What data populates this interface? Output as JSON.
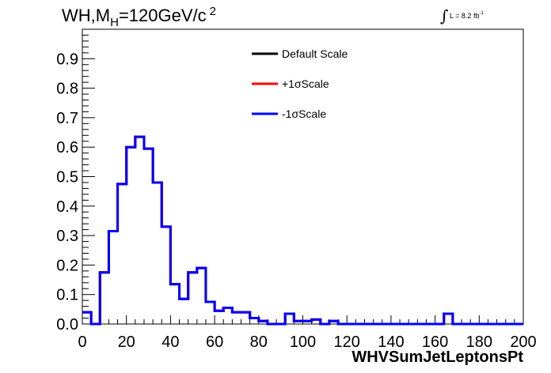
{
  "chart_data": {
    "type": "line",
    "title_parts": {
      "main": "WH,M",
      "sub": "H",
      "rest": "=120GeV/c",
      "sup": "2"
    },
    "lumi_label": {
      "integral": "∫",
      "text": "L = 8.2 fb",
      "sup": "-1"
    },
    "xlabel": "WHVSumJetLeptonsPt",
    "ylabel": "",
    "xlim": [
      0,
      200
    ],
    "ylim": [
      0,
      1.0
    ],
    "x_ticks": [
      "0",
      "20",
      "40",
      "60",
      "80",
      "100",
      "120",
      "140",
      "160",
      "180",
      "200"
    ],
    "y_ticks": [
      "0.0",
      "0.1",
      "0.2",
      "0.3",
      "0.4",
      "0.5",
      "0.6",
      "0.7",
      "0.8",
      "0.9"
    ],
    "bin_edges": [
      0,
      4,
      8,
      12,
      16,
      20,
      24,
      28,
      32,
      36,
      40,
      44,
      48,
      52,
      56,
      60,
      64,
      68,
      72,
      76,
      80,
      84,
      88,
      92,
      96,
      100,
      104,
      108,
      112,
      116,
      120,
      124,
      128,
      132,
      136,
      140,
      144,
      148,
      152,
      156,
      160,
      164,
      168,
      172,
      176,
      180,
      184,
      188,
      192,
      196,
      200
    ],
    "series": [
      {
        "name": "Default Scale",
        "color": "#000000",
        "values": [
          0.04,
          0.0,
          0.175,
          0.315,
          0.475,
          0.6,
          0.635,
          0.595,
          0.48,
          0.33,
          0.135,
          0.085,
          0.175,
          0.19,
          0.075,
          0.045,
          0.055,
          0.04,
          0.04,
          0.02,
          0.01,
          0.0,
          0.0,
          0.035,
          0.01,
          0.01,
          0.015,
          0.0,
          0.01,
          0.0,
          0.0,
          0.0,
          0.0,
          0.0,
          0.0,
          0.0,
          0.0,
          0.0,
          0.0,
          0.0,
          0.0,
          0.035,
          0.0,
          0.0,
          0.0,
          0.0,
          0.0,
          0.0,
          0.0,
          0.0
        ]
      },
      {
        "name": "+1σScale",
        "color": "#ff0000",
        "values": [
          0.04,
          0.0,
          0.175,
          0.315,
          0.475,
          0.6,
          0.635,
          0.595,
          0.48,
          0.33,
          0.135,
          0.085,
          0.175,
          0.19,
          0.075,
          0.045,
          0.055,
          0.04,
          0.04,
          0.02,
          0.01,
          0.0,
          0.0,
          0.035,
          0.01,
          0.01,
          0.015,
          0.0,
          0.01,
          0.0,
          0.0,
          0.0,
          0.0,
          0.0,
          0.0,
          0.0,
          0.0,
          0.0,
          0.0,
          0.0,
          0.0,
          0.035,
          0.0,
          0.0,
          0.0,
          0.0,
          0.0,
          0.0,
          0.0,
          0.0
        ]
      },
      {
        "name": "-1σScale",
        "color": "#0000ff",
        "values": [
          0.04,
          0.0,
          0.175,
          0.315,
          0.475,
          0.6,
          0.635,
          0.595,
          0.48,
          0.33,
          0.135,
          0.085,
          0.175,
          0.19,
          0.075,
          0.045,
          0.055,
          0.04,
          0.04,
          0.02,
          0.01,
          0.0,
          0.0,
          0.035,
          0.01,
          0.01,
          0.015,
          0.0,
          0.01,
          0.0,
          0.0,
          0.0,
          0.0,
          0.0,
          0.0,
          0.0,
          0.0,
          0.0,
          0.0,
          0.0,
          0.0,
          0.035,
          0.0,
          0.0,
          0.0,
          0.0,
          0.0,
          0.0,
          0.0,
          0.0
        ]
      }
    ],
    "legend_position": "top-center",
    "grid": false
  }
}
